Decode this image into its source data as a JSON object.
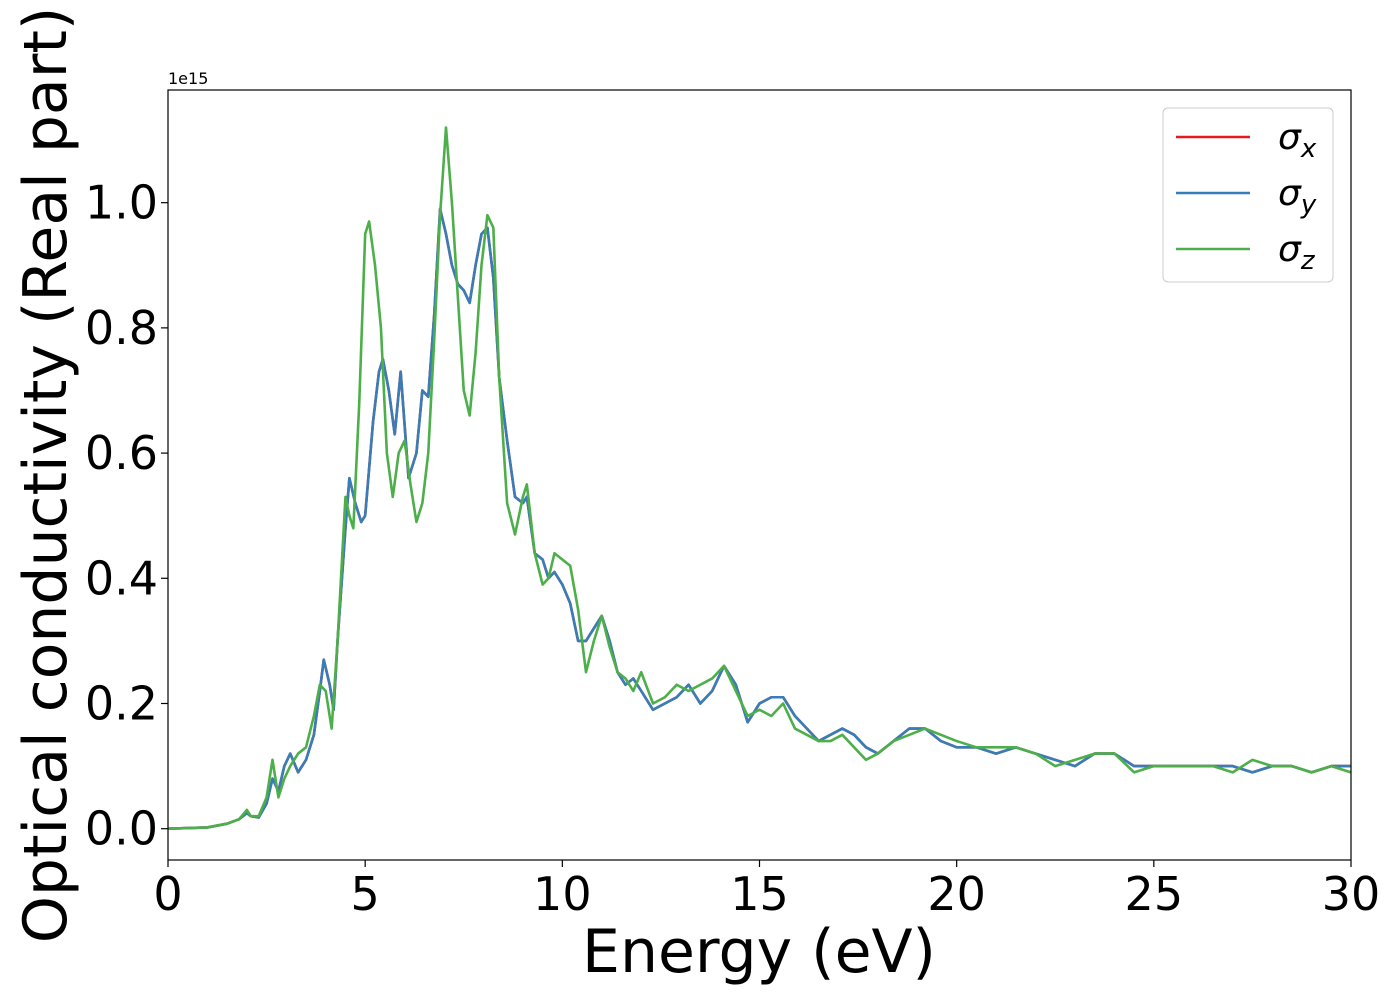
{
  "chart_data": {
    "type": "line",
    "xlabel": "Energy (eV)",
    "ylabel": "Optical conductivity (Real part)",
    "y_offset_label": "1e15",
    "xlim": [
      0,
      30
    ],
    "ylim": [
      -0.05,
      1.18
    ],
    "x_ticks": [
      0,
      5,
      10,
      15,
      20,
      25,
      30
    ],
    "x_tick_labels": [
      "0",
      "5",
      "10",
      "15",
      "20",
      "25",
      "30"
    ],
    "y_ticks": [
      0.0,
      0.2,
      0.4,
      0.6,
      0.8,
      1.0
    ],
    "y_tick_labels": [
      "0.0",
      "0.2",
      "0.4",
      "0.6",
      "0.8",
      "1.0"
    ],
    "grid": false,
    "legend_position": "top-right",
    "series": [
      {
        "name": "σx",
        "symbol": "σ",
        "subscript": "x",
        "color": "#e41a1c",
        "x": [
          0,
          1,
          1.5,
          1.8,
          2.0,
          2.1,
          2.3,
          2.5,
          2.65,
          2.8,
          2.95,
          3.1,
          3.3,
          3.5,
          3.7,
          3.85,
          3.95,
          4.1,
          4.2,
          4.3,
          4.5,
          4.6,
          4.75,
          4.9,
          5.0,
          5.2,
          5.35,
          5.45,
          5.6,
          5.75,
          5.9,
          6.1,
          6.3,
          6.45,
          6.6,
          6.75,
          6.9,
          7.05,
          7.2,
          7.35,
          7.5,
          7.65,
          7.8,
          7.95,
          8.1,
          8.25,
          8.4,
          8.6,
          8.8,
          9.0,
          9.1,
          9.3,
          9.5,
          9.65,
          9.8,
          10.0,
          10.2,
          10.4,
          10.6,
          10.8,
          11.0,
          11.2,
          11.4,
          11.6,
          11.8,
          12.0,
          12.3,
          12.6,
          12.9,
          13.2,
          13.5,
          13.8,
          14.1,
          14.4,
          14.7,
          15.0,
          15.3,
          15.6,
          15.9,
          16.2,
          16.5,
          16.8,
          17.1,
          17.4,
          17.7,
          18.0,
          18.4,
          18.8,
          19.2,
          19.6,
          20.0,
          20.5,
          21.0,
          21.5,
          22.0,
          22.5,
          23.0,
          23.5,
          24.0,
          24.5,
          25.0,
          25.5,
          26.0,
          26.5,
          27.0,
          27.5,
          28.0,
          28.5,
          29.0,
          29.5,
          30.0
        ],
        "y": [
          0,
          0.002,
          0.008,
          0.015,
          0.025,
          0.02,
          0.018,
          0.04,
          0.08,
          0.06,
          0.1,
          0.12,
          0.09,
          0.11,
          0.15,
          0.22,
          0.27,
          0.23,
          0.19,
          0.3,
          0.48,
          0.56,
          0.52,
          0.49,
          0.5,
          0.65,
          0.73,
          0.75,
          0.7,
          0.63,
          0.73,
          0.56,
          0.6,
          0.7,
          0.69,
          0.82,
          0.99,
          0.95,
          0.9,
          0.87,
          0.86,
          0.84,
          0.9,
          0.95,
          0.96,
          0.88,
          0.72,
          0.62,
          0.53,
          0.52,
          0.53,
          0.44,
          0.43,
          0.4,
          0.41,
          0.39,
          0.36,
          0.3,
          0.3,
          0.32,
          0.34,
          0.3,
          0.25,
          0.23,
          0.24,
          0.22,
          0.19,
          0.2,
          0.21,
          0.23,
          0.2,
          0.22,
          0.26,
          0.23,
          0.17,
          0.2,
          0.21,
          0.21,
          0.18,
          0.16,
          0.14,
          0.15,
          0.16,
          0.15,
          0.13,
          0.12,
          0.14,
          0.16,
          0.16,
          0.14,
          0.13,
          0.13,
          0.12,
          0.13,
          0.12,
          0.11,
          0.1,
          0.12,
          0.12,
          0.1,
          0.1,
          0.1,
          0.1,
          0.1,
          0.1,
          0.09,
          0.1,
          0.1,
          0.09,
          0.1,
          0.1
        ]
      },
      {
        "name": "σy",
        "symbol": "σ",
        "subscript": "y",
        "color": "#377eb8",
        "x": [
          0,
          1,
          1.5,
          1.8,
          2.0,
          2.1,
          2.3,
          2.5,
          2.65,
          2.8,
          2.95,
          3.1,
          3.3,
          3.5,
          3.7,
          3.85,
          3.95,
          4.1,
          4.2,
          4.3,
          4.5,
          4.6,
          4.75,
          4.9,
          5.0,
          5.2,
          5.35,
          5.45,
          5.6,
          5.75,
          5.9,
          6.1,
          6.3,
          6.45,
          6.6,
          6.75,
          6.9,
          7.05,
          7.2,
          7.35,
          7.5,
          7.65,
          7.8,
          7.95,
          8.1,
          8.25,
          8.4,
          8.6,
          8.8,
          9.0,
          9.1,
          9.3,
          9.5,
          9.65,
          9.8,
          10.0,
          10.2,
          10.4,
          10.6,
          10.8,
          11.0,
          11.2,
          11.4,
          11.6,
          11.8,
          12.0,
          12.3,
          12.6,
          12.9,
          13.2,
          13.5,
          13.8,
          14.1,
          14.4,
          14.7,
          15.0,
          15.3,
          15.6,
          15.9,
          16.2,
          16.5,
          16.8,
          17.1,
          17.4,
          17.7,
          18.0,
          18.4,
          18.8,
          19.2,
          19.6,
          20.0,
          20.5,
          21.0,
          21.5,
          22.0,
          22.5,
          23.0,
          23.5,
          24.0,
          24.5,
          25.0,
          25.5,
          26.0,
          26.5,
          27.0,
          27.5,
          28.0,
          28.5,
          29.0,
          29.5,
          30.0
        ],
        "y": [
          0,
          0.002,
          0.008,
          0.015,
          0.025,
          0.02,
          0.018,
          0.04,
          0.08,
          0.06,
          0.1,
          0.12,
          0.09,
          0.11,
          0.15,
          0.22,
          0.27,
          0.23,
          0.19,
          0.3,
          0.48,
          0.56,
          0.52,
          0.49,
          0.5,
          0.65,
          0.73,
          0.75,
          0.7,
          0.63,
          0.73,
          0.56,
          0.6,
          0.7,
          0.69,
          0.82,
          0.99,
          0.95,
          0.9,
          0.87,
          0.86,
          0.84,
          0.9,
          0.95,
          0.96,
          0.88,
          0.72,
          0.62,
          0.53,
          0.52,
          0.53,
          0.44,
          0.43,
          0.4,
          0.41,
          0.39,
          0.36,
          0.3,
          0.3,
          0.32,
          0.34,
          0.3,
          0.25,
          0.23,
          0.24,
          0.22,
          0.19,
          0.2,
          0.21,
          0.23,
          0.2,
          0.22,
          0.26,
          0.23,
          0.17,
          0.2,
          0.21,
          0.21,
          0.18,
          0.16,
          0.14,
          0.15,
          0.16,
          0.15,
          0.13,
          0.12,
          0.14,
          0.16,
          0.16,
          0.14,
          0.13,
          0.13,
          0.12,
          0.13,
          0.12,
          0.11,
          0.1,
          0.12,
          0.12,
          0.1,
          0.1,
          0.1,
          0.1,
          0.1,
          0.1,
          0.09,
          0.1,
          0.1,
          0.09,
          0.1,
          0.1
        ]
      },
      {
        "name": "σz",
        "symbol": "σ",
        "subscript": "z",
        "color": "#4daf4a",
        "x": [
          0,
          1,
          1.5,
          1.8,
          2.0,
          2.1,
          2.3,
          2.5,
          2.65,
          2.8,
          2.95,
          3.1,
          3.3,
          3.5,
          3.7,
          3.85,
          4.0,
          4.15,
          4.3,
          4.5,
          4.6,
          4.7,
          4.85,
          5.0,
          5.1,
          5.25,
          5.4,
          5.55,
          5.7,
          5.85,
          6.0,
          6.15,
          6.3,
          6.45,
          6.6,
          6.75,
          6.9,
          7.05,
          7.2,
          7.35,
          7.5,
          7.65,
          7.8,
          7.95,
          8.1,
          8.25,
          8.4,
          8.6,
          8.8,
          9.0,
          9.1,
          9.3,
          9.5,
          9.65,
          9.8,
          10.0,
          10.2,
          10.4,
          10.6,
          10.8,
          11.0,
          11.2,
          11.4,
          11.6,
          11.8,
          12.0,
          12.3,
          12.6,
          12.9,
          13.2,
          13.5,
          13.8,
          14.1,
          14.4,
          14.7,
          15.0,
          15.3,
          15.6,
          15.9,
          16.2,
          16.5,
          16.8,
          17.1,
          17.4,
          17.7,
          18.0,
          18.4,
          18.8,
          19.2,
          19.6,
          20.0,
          20.5,
          21.0,
          21.5,
          22.0,
          22.5,
          23.0,
          23.5,
          24.0,
          24.5,
          25.0,
          25.5,
          26.0,
          26.5,
          27.0,
          27.5,
          28.0,
          28.5,
          29.0,
          29.5,
          30.0
        ],
        "y": [
          0,
          0.002,
          0.008,
          0.015,
          0.03,
          0.02,
          0.02,
          0.05,
          0.11,
          0.05,
          0.08,
          0.1,
          0.12,
          0.13,
          0.18,
          0.23,
          0.22,
          0.16,
          0.3,
          0.53,
          0.5,
          0.48,
          0.68,
          0.95,
          0.97,
          0.9,
          0.8,
          0.6,
          0.53,
          0.6,
          0.62,
          0.55,
          0.49,
          0.52,
          0.6,
          0.78,
          0.98,
          1.12,
          1.0,
          0.85,
          0.7,
          0.66,
          0.76,
          0.9,
          0.98,
          0.96,
          0.72,
          0.52,
          0.47,
          0.53,
          0.55,
          0.44,
          0.39,
          0.4,
          0.44,
          0.43,
          0.42,
          0.35,
          0.25,
          0.3,
          0.34,
          0.29,
          0.25,
          0.24,
          0.22,
          0.25,
          0.2,
          0.21,
          0.23,
          0.22,
          0.23,
          0.24,
          0.26,
          0.22,
          0.18,
          0.19,
          0.18,
          0.2,
          0.16,
          0.15,
          0.14,
          0.14,
          0.15,
          0.13,
          0.11,
          0.12,
          0.14,
          0.15,
          0.16,
          0.15,
          0.14,
          0.13,
          0.13,
          0.13,
          0.12,
          0.1,
          0.11,
          0.12,
          0.12,
          0.09,
          0.1,
          0.1,
          0.1,
          0.1,
          0.09,
          0.11,
          0.1,
          0.1,
          0.09,
          0.1,
          0.09
        ]
      }
    ]
  }
}
